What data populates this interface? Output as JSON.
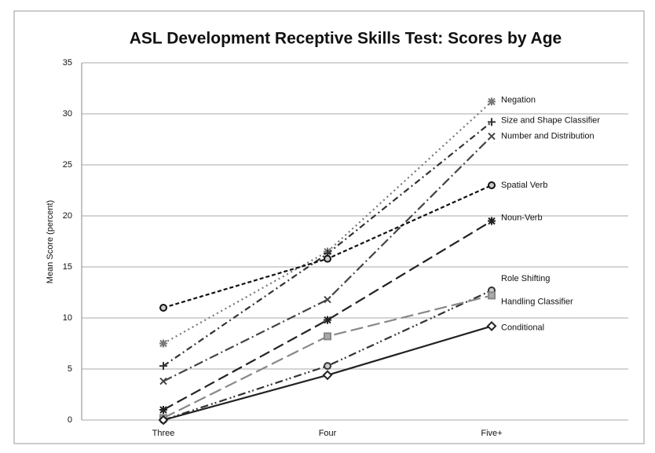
{
  "chart_data": {
    "type": "line",
    "title": "ASL Development Receptive Skills Test: Scores by Age",
    "y_label": "Mean Score (percent)",
    "categories": [
      "Three",
      "Four",
      "Five+"
    ],
    "ylim": [
      0,
      35
    ],
    "yticks": [
      0,
      5,
      10,
      15,
      20,
      25,
      30,
      35
    ],
    "grid": true,
    "series": [
      {
        "name": "Negation",
        "color": "#777777",
        "dash": "2,4",
        "marker": "star",
        "values": [
          7.5,
          16.5,
          31.2
        ]
      },
      {
        "name": "Size and Shape Classifier",
        "color": "#333333",
        "dash": "8,4,2,4",
        "marker": "plus",
        "values": [
          5.3,
          16.3,
          29.2
        ]
      },
      {
        "name": "Number and Distribution",
        "color": "#444444",
        "dash": "12,4,2,4",
        "marker": "x",
        "values": [
          3.8,
          11.8,
          27.8
        ]
      },
      {
        "name": "Spatial Verb",
        "color": "#111111",
        "dash": "5,3",
        "marker": "circle",
        "values": [
          11,
          15.8,
          23
        ]
      },
      {
        "name": "Noun-Verb",
        "color": "#222222",
        "dash": "14,6",
        "marker": "star",
        "values": [
          1.0,
          9.8,
          19.5
        ]
      },
      {
        "name": "Role Shifting",
        "color": "#333333",
        "dash": "10,4,2,3,2,4",
        "marker": "circle",
        "values": [
          0,
          5.3,
          12.7
        ]
      },
      {
        "name": "Handling Classifier",
        "color": "#888888",
        "dash": "16,6",
        "marker": "square",
        "values": [
          0.2,
          8.2,
          12.2
        ]
      },
      {
        "name": "Conditional",
        "color": "#222222",
        "dash": "",
        "marker": "diamond",
        "values": [
          0,
          4.4,
          9.2
        ]
      }
    ]
  }
}
